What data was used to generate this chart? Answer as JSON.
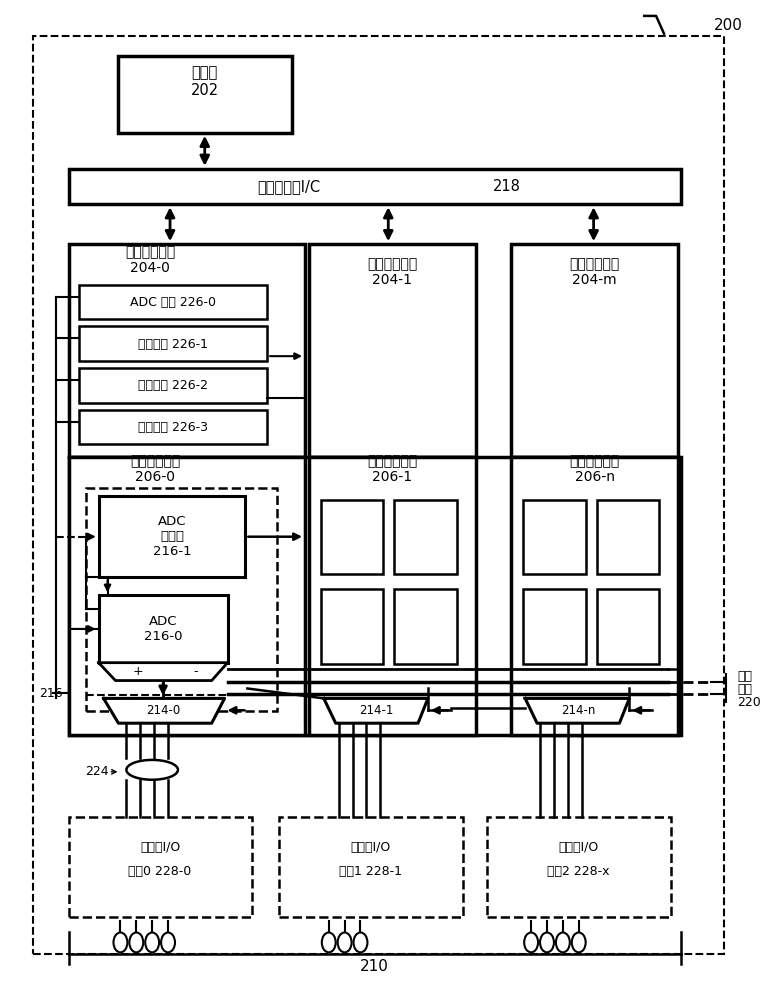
{
  "fig_width": 7.66,
  "fig_height": 10.0,
  "bg_color": "#ffffff",
  "title_200": "200",
  "label_202": "处理器\n202",
  "label_218_text": "可编程数字I/C",
  "label_218_num": "218",
  "label_204_0": "数字可编程块\n204-0",
  "label_204_1": "数字可编程块\n204-1",
  "label_204_m": "数字可编程块\n204-m",
  "label_206_0": "模拟可编程块\n206-0",
  "label_206_1": "模拟可编程块\n206-1",
  "label_206_n": "模拟可编程块\n206-n",
  "label_226_0": "ADC 配置 226-0",
  "label_226_1": "采样控制 226-1",
  "label_226_2": "结果处理 226-2",
  "label_226_3": "端口控制 226-3",
  "label_adc_seq": "ADC\n定序器\n216-1",
  "label_adc": "ADC\n216-0",
  "label_214_0": "214-0",
  "label_214_1": "214-1",
  "label_214_n": "214-n",
  "label_216": "216",
  "label_224": "224",
  "label_210": "210",
  "label_220_1": "模拟",
  "label_220_2": "总线",
  "label_220_3": "220",
  "label_port0_1": "可编程I/O",
  "label_port0_2": "端口0 228-0",
  "label_port1_1": "可编程I/O",
  "label_port1_2": "端口1 228-1",
  "label_port2_1": "可编程I/O",
  "label_port2_2": "端口2 228-x",
  "plus": "+",
  "minus": "-"
}
